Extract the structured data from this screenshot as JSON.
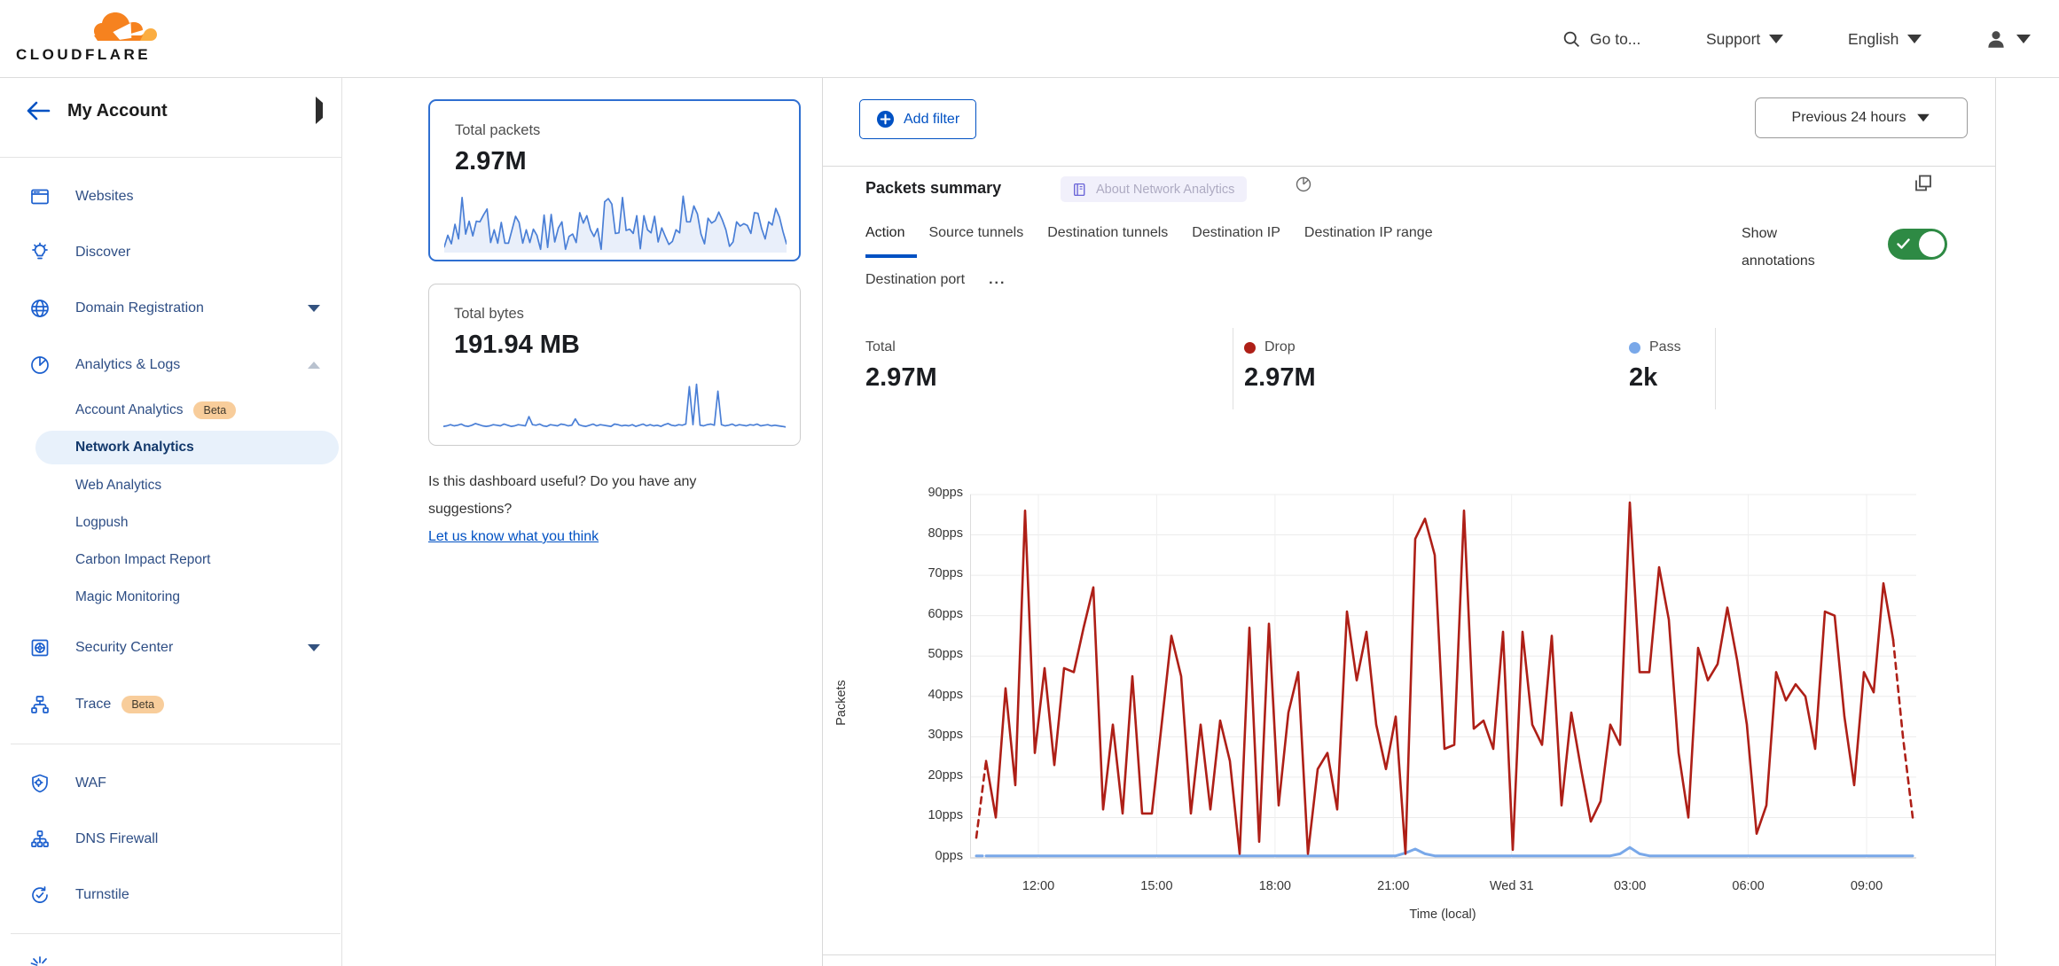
{
  "topnav": {
    "brand": "CLOUDFLARE",
    "goto_label": "Go to...",
    "support_label": "Support",
    "language_label": "English"
  },
  "sidebar": {
    "account_label": "My Account",
    "websites": "Websites",
    "discover": "Discover",
    "domain_registration": "Domain Registration",
    "analytics_logs": "Analytics & Logs",
    "analytics_children": [
      {
        "label": "Account Analytics",
        "badge": "Beta"
      },
      {
        "label": "Network Analytics"
      },
      {
        "label": "Web Analytics"
      },
      {
        "label": "Logpush"
      },
      {
        "label": "Carbon Impact Report"
      },
      {
        "label": "Magic Monitoring"
      }
    ],
    "security_center": "Security Center",
    "trace": "Trace",
    "trace_badge": "Beta",
    "waf": "WAF",
    "dns_firewall": "DNS Firewall",
    "turnstile": "Turnstile"
  },
  "cards": [
    {
      "title": "Total packets",
      "value": "2.97M"
    },
    {
      "title": "Total bytes",
      "value": "191.94 MB"
    }
  ],
  "feedback": {
    "question_line1": "Is this dashboard useful? Do you have any",
    "question_line2": "suggestions?",
    "link": "Let us know what you think"
  },
  "filter_bar": {
    "add_filter": "Add filter",
    "time_range": "Previous 24 hours"
  },
  "summary": {
    "title": "Packets summary",
    "about_tag": "About Network Analytics",
    "active_tab": "Action",
    "tabs": [
      "Action",
      "Source tunnels",
      "Destination tunnels",
      "Destination IP",
      "Destination IP range",
      "Destination port"
    ],
    "more_label": "...",
    "show_annotations": "Show annotations",
    "stats": [
      {
        "label": "Total",
        "value": "2.97M"
      },
      {
        "label": "Drop",
        "value": "2.97M",
        "dot_color": "#ae1f17"
      },
      {
        "label": "Pass",
        "value": "2k",
        "dot_color": "#79a8e9"
      }
    ]
  },
  "chart_data": [
    {
      "id": "packets-summary-timeseries",
      "type": "line",
      "title": "Packets summary",
      "xlabel": "Time (local)",
      "ylabel": "Packets",
      "ylim": [
        0,
        90
      ],
      "grid": true,
      "interval_minutes": 15,
      "y_tick_labels": [
        "0pps",
        "10pps",
        "20pps",
        "30pps",
        "40pps",
        "50pps",
        "60pps",
        "70pps",
        "80pps",
        "90pps"
      ],
      "x_tick_labels": [
        "12:00",
        "15:00",
        "18:00",
        "21:00",
        "Wed 31",
        "03:00",
        "06:00",
        "09:00"
      ],
      "legend_position": "top",
      "series": [
        {
          "name": "Drop",
          "color": "#ae1f17",
          "dashed_head_segments": 1,
          "dashed_tail_segments": 2,
          "values": [
            5,
            24,
            10,
            42,
            18,
            86,
            26,
            47,
            23,
            47,
            46,
            57,
            67,
            12,
            33,
            11,
            45,
            11,
            11,
            33,
            55,
            45,
            11,
            33,
            12,
            34,
            24,
            1,
            57,
            4,
            58,
            13,
            36,
            46,
            1,
            22,
            26,
            12,
            61,
            44,
            56,
            33,
            22,
            35,
            1,
            79,
            84,
            75,
            27,
            28,
            86,
            32,
            34,
            27,
            56,
            2,
            56,
            33,
            28,
            55,
            13,
            36,
            22,
            9,
            14,
            33,
            28,
            88,
            46,
            46,
            72,
            59,
            26,
            10,
            52,
            44,
            48,
            62,
            49,
            33,
            6,
            13,
            46,
            39,
            43,
            40,
            27,
            61,
            60,
            35,
            18,
            46,
            41,
            68,
            54,
            30,
            10
          ]
        },
        {
          "name": "Pass",
          "color": "#79a8e9",
          "dashed_head_segments": 1,
          "dashed_tail_segments": 0,
          "values": [
            0.5,
            0.5,
            0.5,
            0.5,
            0.5,
            0.5,
            0.5,
            0.5,
            0.5,
            0.5,
            0.5,
            0.5,
            0.5,
            0.5,
            0.5,
            0.5,
            0.5,
            0.5,
            0.5,
            0.5,
            0.5,
            0.5,
            0.5,
            0.5,
            0.5,
            0.5,
            0.5,
            0.5,
            0.5,
            0.5,
            0.5,
            0.5,
            0.5,
            0.5,
            0.5,
            0.5,
            0.5,
            0.5,
            0.5,
            0.5,
            0.5,
            0.5,
            0.5,
            0.5,
            1.2,
            2.2,
            1.0,
            0.5,
            0.5,
            0.5,
            0.5,
            0.5,
            0.5,
            0.5,
            0.5,
            0.5,
            0.5,
            0.5,
            0.5,
            0.5,
            0.5,
            0.5,
            0.5,
            0.5,
            0.5,
            0.5,
            1.0,
            2.6,
            1.0,
            0.5,
            0.5,
            0.5,
            0.5,
            0.5,
            0.5,
            0.5,
            0.5,
            0.5,
            0.5,
            0.5,
            0.5,
            0.5,
            0.5,
            0.5,
            0.5,
            0.5,
            0.5,
            0.5,
            0.5,
            0.5,
            0.5,
            0.5,
            0.5,
            0.5,
            0.5,
            0.5,
            0.5
          ]
        }
      ]
    },
    {
      "id": "total-packets-sparkline",
      "type": "line",
      "title": "Total packets",
      "series": [
        {
          "name": "packets",
          "color": "#4a7fd6",
          "fill": "rgba(74,127,214,0.12)",
          "values": [
            5,
            24,
            10,
            42,
            18,
            86,
            26,
            47,
            23,
            47,
            46,
            57,
            67,
            12,
            33,
            11,
            45,
            11,
            11,
            33,
            55,
            45,
            11,
            33,
            12,
            34,
            24,
            1,
            57,
            4,
            58,
            13,
            36,
            46,
            1,
            22,
            26,
            12,
            61,
            44,
            56,
            33,
            22,
            35,
            1,
            79,
            84,
            75,
            27,
            28,
            86,
            32,
            34,
            27,
            56,
            2,
            56,
            33,
            28,
            55,
            13,
            36,
            22,
            9,
            14,
            33,
            28,
            88,
            46,
            46,
            72,
            59,
            26,
            10,
            52,
            44,
            48,
            62,
            49,
            33,
            6,
            13,
            46,
            39,
            43,
            40,
            27,
            61,
            60,
            35,
            18,
            46,
            41,
            68,
            54,
            30,
            10
          ]
        }
      ]
    },
    {
      "id": "total-bytes-sparkline",
      "type": "line",
      "title": "Total bytes",
      "series": [
        {
          "name": "bytes",
          "color": "#4a7fd6",
          "values": [
            9,
            10,
            12,
            10,
            11,
            13,
            10,
            9,
            11,
            14,
            12,
            10,
            9,
            10,
            12,
            11,
            10,
            13,
            11,
            9,
            10,
            12,
            11,
            10,
            26,
            12,
            11,
            13,
            10,
            9,
            12,
            11,
            10,
            13,
            12,
            10,
            11,
            22,
            12,
            10,
            9,
            11,
            13,
            10,
            12,
            11,
            10,
            9,
            13,
            12,
            10,
            11,
            10,
            12,
            9,
            11,
            13,
            10,
            12,
            10,
            11,
            9,
            12,
            14,
            11,
            10,
            12,
            11,
            13,
            78,
            12,
            82,
            11,
            10,
            12,
            13,
            11,
            70,
            12,
            10,
            11,
            13,
            10,
            12,
            11,
            10,
            12,
            11,
            13,
            10,
            11,
            12,
            10,
            11,
            10,
            9,
            8
          ]
        }
      ]
    }
  ],
  "colors": {
    "accent_blue": "#0051c3",
    "drop_red": "#ae1f17",
    "pass_blue": "#79a8e9",
    "toggle_green": "#2e8a44",
    "beta_badge_bg": "#f8cd9b",
    "selected_item_bg": "#e8f1fb",
    "brand_orange": "#f6821f",
    "brand_orange_light": "#fbad41"
  }
}
